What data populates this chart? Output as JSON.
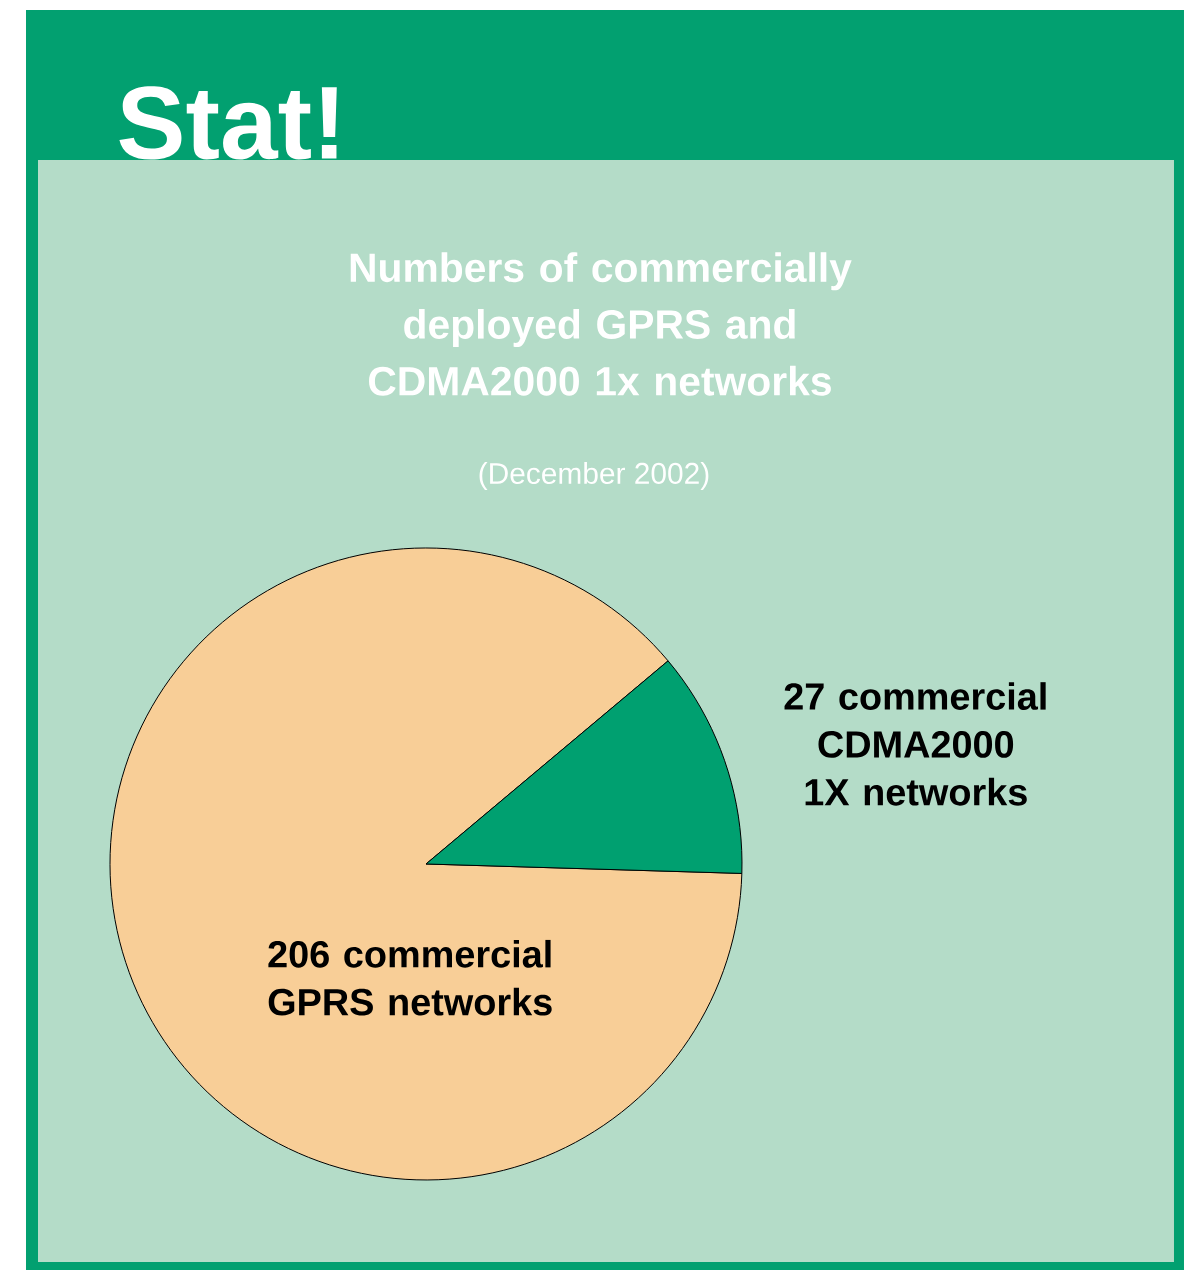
{
  "chart_data": {
    "type": "pie",
    "title": "Numbers of commercially deployed GPRS and CDMA2000 1x networks",
    "subtitle": "(December 2002)",
    "annotations": [
      "Stat!"
    ],
    "categories": [
      "206 commercial GPRS networks",
      "27 commercial CDMA2000 1X networks"
    ],
    "values": [
      206,
      27
    ],
    "colors": [
      "#f8ce97",
      "#00a070"
    ]
  }
}
